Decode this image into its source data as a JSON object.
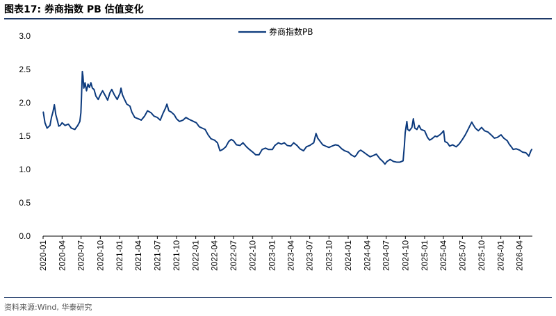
{
  "header": {
    "title": "图表17:  券商指数 PB 估值变化"
  },
  "footer": {
    "source": "资料来源:Wind, 华泰研究"
  },
  "colors": {
    "series": "#0c3a7d",
    "rule": "#1f3a68"
  },
  "chart_data": {
    "type": "line",
    "title": "",
    "xlabel": "",
    "ylabel": "",
    "ylim": [
      0,
      3.0
    ],
    "yticks": [
      "0.0",
      "0.5",
      "1.0",
      "1.5",
      "2.0",
      "2.5",
      "3.0"
    ],
    "xlim": [
      "2020-01",
      "2026-06"
    ],
    "xticks": [
      "2020-01",
      "2020-04",
      "2020-07",
      "2020-10",
      "2021-01",
      "2021-04",
      "2021-07",
      "2021-10",
      "2022-01",
      "2022-04",
      "2022-07",
      "2022-10",
      "2023-01",
      "2023-04",
      "2023-07",
      "2023-10",
      "2024-01",
      "2024-04",
      "2024-07",
      "2024-10",
      "2025-01",
      "2025-04",
      "2025-07",
      "2025-10",
      "2026-01",
      "2026-04"
    ],
    "grid": false,
    "legend": {
      "position": "top-center"
    },
    "series": [
      {
        "name": "券商指数PB",
        "points": [
          [
            "2020-01-02",
            1.86
          ],
          [
            "2020-01-10",
            1.7
          ],
          [
            "2020-01-20",
            1.62
          ],
          [
            "2020-02-03",
            1.66
          ],
          [
            "2020-02-10",
            1.78
          ],
          [
            "2020-02-17",
            1.86
          ],
          [
            "2020-02-24",
            1.97
          ],
          [
            "2020-03-02",
            1.82
          ],
          [
            "2020-03-09",
            1.74
          ],
          [
            "2020-03-16",
            1.65
          ],
          [
            "2020-03-23",
            1.66
          ],
          [
            "2020-04-01",
            1.7
          ],
          [
            "2020-04-15",
            1.66
          ],
          [
            "2020-05-01",
            1.68
          ],
          [
            "2020-05-15",
            1.62
          ],
          [
            "2020-06-01",
            1.6
          ],
          [
            "2020-06-15",
            1.66
          ],
          [
            "2020-06-25",
            1.72
          ],
          [
            "2020-06-30",
            1.85
          ],
          [
            "2020-07-03",
            2.1
          ],
          [
            "2020-07-07",
            2.47
          ],
          [
            "2020-07-10",
            2.4
          ],
          [
            "2020-07-14",
            2.22
          ],
          [
            "2020-07-20",
            2.3
          ],
          [
            "2020-07-27",
            2.18
          ],
          [
            "2020-08-03",
            2.28
          ],
          [
            "2020-08-10",
            2.23
          ],
          [
            "2020-08-17",
            2.3
          ],
          [
            "2020-08-24",
            2.22
          ],
          [
            "2020-09-01",
            2.2
          ],
          [
            "2020-09-10",
            2.1
          ],
          [
            "2020-09-21",
            2.05
          ],
          [
            "2020-10-01",
            2.12
          ],
          [
            "2020-10-12",
            2.18
          ],
          [
            "2020-10-26",
            2.1
          ],
          [
            "2020-11-05",
            2.04
          ],
          [
            "2020-11-16",
            2.15
          ],
          [
            "2020-11-25",
            2.2
          ],
          [
            "2020-12-07",
            2.12
          ],
          [
            "2020-12-21",
            2.05
          ],
          [
            "2021-01-04",
            2.15
          ],
          [
            "2021-01-08",
            2.22
          ],
          [
            "2021-01-15",
            2.12
          ],
          [
            "2021-01-25",
            2.05
          ],
          [
            "2021-02-05",
            1.98
          ],
          [
            "2021-02-20",
            1.95
          ],
          [
            "2021-03-01",
            1.86
          ],
          [
            "2021-03-15",
            1.78
          ],
          [
            "2021-04-01",
            1.76
          ],
          [
            "2021-04-15",
            1.74
          ],
          [
            "2021-05-01",
            1.8
          ],
          [
            "2021-05-15",
            1.88
          ],
          [
            "2021-06-01",
            1.85
          ],
          [
            "2021-06-15",
            1.8
          ],
          [
            "2021-07-01",
            1.78
          ],
          [
            "2021-07-15",
            1.74
          ],
          [
            "2021-07-28",
            1.84
          ],
          [
            "2021-08-09",
            1.92
          ],
          [
            "2021-08-16",
            1.98
          ],
          [
            "2021-08-25",
            1.88
          ],
          [
            "2021-09-06",
            1.86
          ],
          [
            "2021-09-20",
            1.82
          ],
          [
            "2021-10-01",
            1.76
          ],
          [
            "2021-10-15",
            1.72
          ],
          [
            "2021-11-01",
            1.74
          ],
          [
            "2021-11-15",
            1.78
          ],
          [
            "2021-12-01",
            1.75
          ],
          [
            "2021-12-15",
            1.73
          ],
          [
            "2022-01-04",
            1.7
          ],
          [
            "2022-01-18",
            1.64
          ],
          [
            "2022-02-01",
            1.62
          ],
          [
            "2022-02-15",
            1.6
          ],
          [
            "2022-03-01",
            1.52
          ],
          [
            "2022-03-15",
            1.46
          ],
          [
            "2022-04-01",
            1.44
          ],
          [
            "2022-04-15",
            1.4
          ],
          [
            "2022-04-27",
            1.28
          ],
          [
            "2022-05-10",
            1.3
          ],
          [
            "2022-05-25",
            1.34
          ],
          [
            "2022-06-08",
            1.42
          ],
          [
            "2022-06-20",
            1.45
          ],
          [
            "2022-07-01",
            1.43
          ],
          [
            "2022-07-15",
            1.37
          ],
          [
            "2022-08-01",
            1.36
          ],
          [
            "2022-08-15",
            1.4
          ],
          [
            "2022-09-01",
            1.34
          ],
          [
            "2022-09-15",
            1.3
          ],
          [
            "2022-10-01",
            1.26
          ],
          [
            "2022-10-15",
            1.22
          ],
          [
            "2022-10-31",
            1.22
          ],
          [
            "2022-11-15",
            1.3
          ],
          [
            "2022-12-01",
            1.32
          ],
          [
            "2022-12-15",
            1.3
          ],
          [
            "2023-01-03",
            1.3
          ],
          [
            "2023-01-15",
            1.36
          ],
          [
            "2023-02-01",
            1.4
          ],
          [
            "2023-02-15",
            1.38
          ],
          [
            "2023-03-01",
            1.4
          ],
          [
            "2023-03-15",
            1.36
          ],
          [
            "2023-04-01",
            1.35
          ],
          [
            "2023-04-15",
            1.4
          ],
          [
            "2023-05-01",
            1.36
          ],
          [
            "2023-05-15",
            1.31
          ],
          [
            "2023-06-01",
            1.28
          ],
          [
            "2023-06-15",
            1.34
          ],
          [
            "2023-07-01",
            1.36
          ],
          [
            "2023-07-20",
            1.4
          ],
          [
            "2023-07-31",
            1.54
          ],
          [
            "2023-08-08",
            1.47
          ],
          [
            "2023-08-20",
            1.42
          ],
          [
            "2023-09-01",
            1.37
          ],
          [
            "2023-09-15",
            1.35
          ],
          [
            "2023-10-01",
            1.33
          ],
          [
            "2023-10-15",
            1.35
          ],
          [
            "2023-11-01",
            1.37
          ],
          [
            "2023-11-15",
            1.36
          ],
          [
            "2023-12-01",
            1.31
          ],
          [
            "2023-12-15",
            1.28
          ],
          [
            "2024-01-02",
            1.26
          ],
          [
            "2024-01-15",
            1.22
          ],
          [
            "2024-02-01",
            1.19
          ],
          [
            "2024-02-10",
            1.22
          ],
          [
            "2024-02-20",
            1.27
          ],
          [
            "2024-03-01",
            1.29
          ],
          [
            "2024-03-15",
            1.26
          ],
          [
            "2024-04-01",
            1.22
          ],
          [
            "2024-04-15",
            1.19
          ],
          [
            "2024-05-01",
            1.21
          ],
          [
            "2024-05-15",
            1.23
          ],
          [
            "2024-06-01",
            1.16
          ],
          [
            "2024-06-15",
            1.12
          ],
          [
            "2024-06-25",
            1.08
          ],
          [
            "2024-07-05",
            1.12
          ],
          [
            "2024-07-20",
            1.15
          ],
          [
            "2024-08-05",
            1.12
          ],
          [
            "2024-08-20",
            1.11
          ],
          [
            "2024-09-05",
            1.11
          ],
          [
            "2024-09-20",
            1.13
          ],
          [
            "2024-09-26",
            1.35
          ],
          [
            "2024-09-30",
            1.55
          ],
          [
            "2024-10-08",
            1.72
          ],
          [
            "2024-10-12",
            1.6
          ],
          [
            "2024-10-20",
            1.58
          ],
          [
            "2024-11-01",
            1.63
          ],
          [
            "2024-11-08",
            1.76
          ],
          [
            "2024-11-15",
            1.62
          ],
          [
            "2024-11-25",
            1.6
          ],
          [
            "2024-12-05",
            1.66
          ],
          [
            "2024-12-15",
            1.6
          ],
          [
            "2025-01-01",
            1.58
          ],
          [
            "2025-01-15",
            1.48
          ],
          [
            "2025-01-25",
            1.44
          ],
          [
            "2025-02-05",
            1.46
          ],
          [
            "2025-02-20",
            1.5
          ],
          [
            "2025-03-01",
            1.49
          ],
          [
            "2025-03-15",
            1.52
          ],
          [
            "2025-03-25",
            1.55
          ],
          [
            "2025-04-02",
            1.58
          ],
          [
            "2025-04-08",
            1.42
          ],
          [
            "2025-04-20",
            1.4
          ],
          [
            "2025-05-01",
            1.35
          ],
          [
            "2025-05-15",
            1.37
          ],
          [
            "2025-06-01",
            1.34
          ],
          [
            "2025-06-15",
            1.38
          ],
          [
            "2025-07-01",
            1.45
          ],
          [
            "2025-07-15",
            1.52
          ],
          [
            "2025-07-28",
            1.6
          ],
          [
            "2025-08-05",
            1.65
          ],
          [
            "2025-08-15",
            1.71
          ],
          [
            "2025-08-20",
            1.68
          ],
          [
            "2025-09-01",
            1.62
          ],
          [
            "2025-09-15",
            1.58
          ],
          [
            "2025-10-01",
            1.63
          ],
          [
            "2025-10-15",
            1.58
          ],
          [
            "2025-11-01",
            1.56
          ],
          [
            "2025-11-15",
            1.52
          ],
          [
            "2025-12-01",
            1.47
          ],
          [
            "2025-12-15",
            1.48
          ],
          [
            "2026-01-02",
            1.52
          ],
          [
            "2026-01-15",
            1.47
          ],
          [
            "2026-02-01",
            1.43
          ],
          [
            "2026-02-10",
            1.38
          ],
          [
            "2026-02-20",
            1.34
          ],
          [
            "2026-03-01",
            1.3
          ],
          [
            "2026-03-15",
            1.31
          ],
          [
            "2026-04-01",
            1.29
          ],
          [
            "2026-04-15",
            1.26
          ],
          [
            "2026-05-01",
            1.25
          ],
          [
            "2026-05-10",
            1.22
          ],
          [
            "2026-05-15",
            1.2
          ],
          [
            "2026-05-20",
            1.24
          ],
          [
            "2026-05-25",
            1.28
          ],
          [
            "2026-05-29",
            1.3
          ]
        ]
      }
    ]
  }
}
